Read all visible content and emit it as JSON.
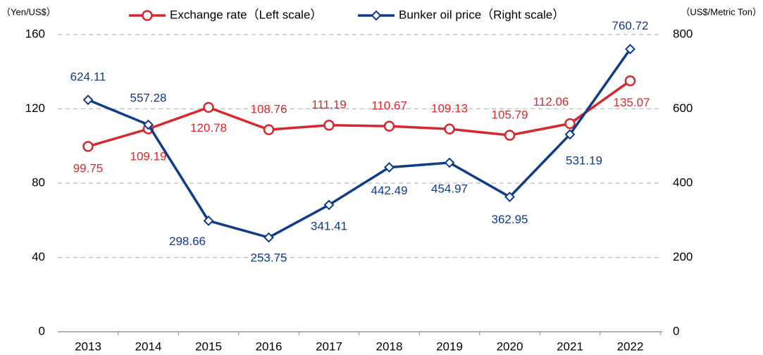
{
  "chart_data": {
    "type": "line",
    "categories": [
      "2013",
      "2014",
      "2015",
      "2016",
      "2017",
      "2018",
      "2019",
      "2020",
      "2021",
      "2022"
    ],
    "series": [
      {
        "name": "Exchange rate（Left scale）",
        "color": "#d7282f",
        "values": [
          99.75,
          109.19,
          120.78,
          108.76,
          111.19,
          110.67,
          109.13,
          105.79,
          112.06,
          135.07
        ]
      },
      {
        "name": "Bunker oil price（Right scale）",
        "color": "#0f3c88",
        "axis": "y2",
        "values": [
          624.11,
          557.28,
          298.66,
          253.75,
          341.41,
          442.49,
          454.97,
          362.95,
          531.19,
          760.72
        ]
      }
    ],
    "ylabel": "（Yen/US$）",
    "y2label": "（US$/Metric Ton）",
    "ylim": [
      0,
      160
    ],
    "yticks": [
      0,
      40,
      80,
      120,
      160
    ],
    "y2lim": [
      0,
      800
    ],
    "y2ticks": [
      0,
      200,
      400,
      600,
      800
    ],
    "grid": true,
    "legend": "top"
  }
}
